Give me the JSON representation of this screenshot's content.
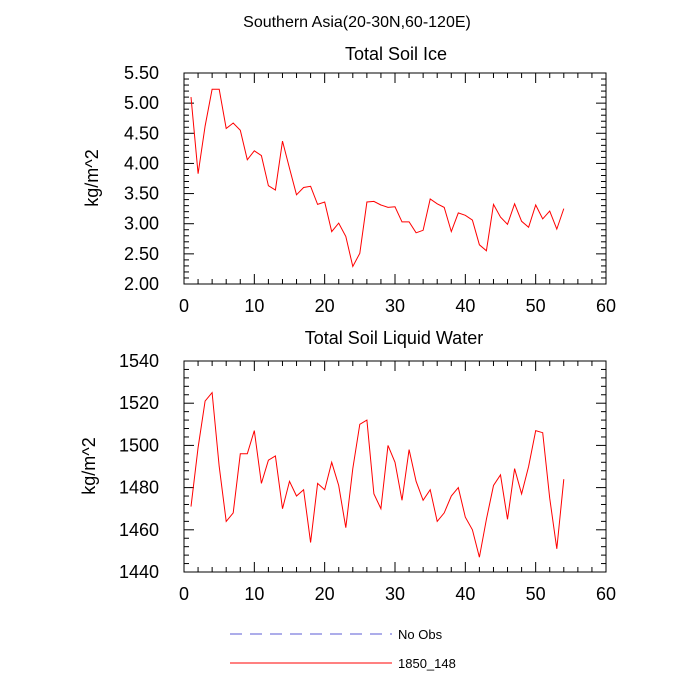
{
  "figure": {
    "title": "Southern Asia(20-30N,60-120E)"
  },
  "colors": {
    "series": "#ff0000",
    "obs": "#5b5bd6",
    "axis": "#000000"
  },
  "legend": {
    "position": "bottom",
    "entries": [
      {
        "label": "No Obs",
        "style": "dashed",
        "color": "#5b5bd6"
      },
      {
        "label": "1850_148",
        "style": "solid",
        "color": "#ff0000"
      }
    ]
  },
  "chart_data": [
    {
      "type": "line",
      "title": "Total Soil Ice",
      "xlabel": "",
      "ylabel": "kg/m^2",
      "xlim": [
        0,
        60
      ],
      "ylim": [
        2.0,
        5.5
      ],
      "xticks": [
        0,
        10,
        20,
        30,
        40,
        50,
        60
      ],
      "xtick_labels": [
        "0",
        "10",
        "20",
        "30",
        "40",
        "50",
        "60"
      ],
      "yticks": [
        2.0,
        2.5,
        3.0,
        3.5,
        4.0,
        4.5,
        5.0,
        5.5
      ],
      "ytick_labels": [
        "2.00",
        "2.50",
        "3.00",
        "3.50",
        "4.00",
        "4.50",
        "5.00",
        "5.50"
      ],
      "grid": false,
      "series": [
        {
          "name": "1850_148",
          "x": [
            1,
            2,
            3,
            4,
            5,
            6,
            7,
            8,
            9,
            10,
            11,
            12,
            13,
            14,
            15,
            16,
            17,
            18,
            19,
            20,
            21,
            22,
            23,
            24,
            25,
            26,
            27,
            28,
            29,
            30,
            31,
            32,
            33,
            34,
            35,
            36,
            37,
            38,
            39,
            40,
            41,
            42,
            43,
            44,
            45,
            46,
            47,
            48,
            49,
            50,
            51,
            52,
            53,
            54
          ],
          "y": [
            5.1,
            3.83,
            4.62,
            5.23,
            5.23,
            4.58,
            4.67,
            4.55,
            4.06,
            4.21,
            4.13,
            3.63,
            3.56,
            4.37,
            3.92,
            3.48,
            3.6,
            3.62,
            3.32,
            3.36,
            2.87,
            3.01,
            2.79,
            2.29,
            2.51,
            3.36,
            3.37,
            3.31,
            3.27,
            3.28,
            3.03,
            3.03,
            2.85,
            2.89,
            3.41,
            3.33,
            3.27,
            2.87,
            3.18,
            3.14,
            3.06,
            2.65,
            2.55,
            3.32,
            3.11,
            2.99,
            3.33,
            3.04,
            2.94,
            3.31,
            3.08,
            3.21,
            2.91,
            3.25
          ]
        }
      ]
    },
    {
      "type": "line",
      "title": "Total Soil Liquid Water",
      "xlabel": "",
      "ylabel": "kg/m^2",
      "xlim": [
        0,
        60
      ],
      "ylim": [
        1440,
        1540
      ],
      "xticks": [
        0,
        10,
        20,
        30,
        40,
        50,
        60
      ],
      "xtick_labels": [
        "0",
        "10",
        "20",
        "30",
        "40",
        "50",
        "60"
      ],
      "yticks": [
        1440,
        1460,
        1480,
        1500,
        1520,
        1540
      ],
      "ytick_labels": [
        "1440",
        "1460",
        "1480",
        "1500",
        "1520",
        "1540"
      ],
      "grid": false,
      "series": [
        {
          "name": "1850_148",
          "x": [
            1,
            2,
            3,
            4,
            5,
            6,
            7,
            8,
            9,
            10,
            11,
            12,
            13,
            14,
            15,
            16,
            17,
            18,
            19,
            20,
            21,
            22,
            23,
            24,
            25,
            26,
            27,
            28,
            29,
            30,
            31,
            32,
            33,
            34,
            35,
            36,
            37,
            38,
            39,
            40,
            41,
            42,
            43,
            44,
            45,
            46,
            47,
            48,
            49,
            50,
            51,
            52,
            53,
            54
          ],
          "y": [
            1471,
            1499,
            1521,
            1525,
            1490,
            1464,
            1468,
            1496,
            1496,
            1507,
            1482,
            1493,
            1495,
            1470,
            1483,
            1476,
            1479,
            1454,
            1482,
            1479,
            1492,
            1481,
            1461,
            1489,
            1510,
            1512,
            1477,
            1470,
            1500,
            1492,
            1474,
            1498,
            1483,
            1474,
            1479,
            1464,
            1468,
            1476,
            1480,
            1466,
            1460,
            1447,
            1465,
            1481,
            1486,
            1465,
            1489,
            1477,
            1490,
            1507,
            1506,
            1475,
            1451,
            1484
          ]
        }
      ]
    }
  ]
}
